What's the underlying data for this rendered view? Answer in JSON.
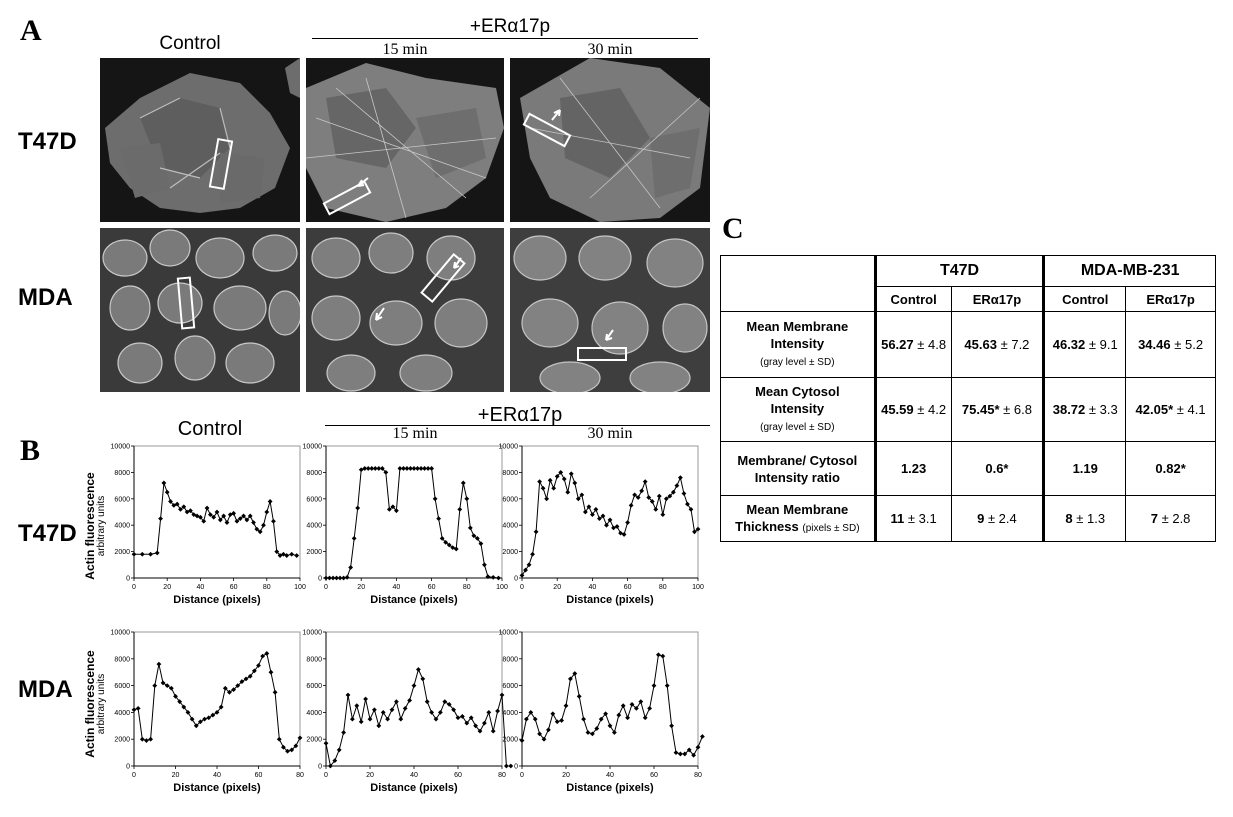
{
  "figure": {
    "panel_a": {
      "letter": "A",
      "col_control": "Control",
      "col_group": "+ERα17p",
      "col_15": "15 min",
      "col_30": "30 min",
      "row_t47d": "T47D",
      "row_mda": "MDA"
    },
    "panel_b": {
      "letter": "B",
      "col_control": "Control",
      "col_group": "+ERα17p",
      "col_15": "15 min",
      "col_30": "30 min",
      "row_t47d": "T47D",
      "row_mda": "MDA",
      "ylabel": "Actin fluorescence",
      "ylabel2": "arbitrary units",
      "xlabel": "Distance (pixels)"
    },
    "panel_c": {
      "letter": "C",
      "group1": "T47D",
      "group2": "MDA-MB-231",
      "sub_control": "Control",
      "sub_treat": "ERα17p",
      "rows": [
        {
          "label": "Mean Membrane Intensity",
          "unit": "(gray level  ± SD)",
          "cells": [
            {
              "v": "56.27",
              "e": "± 4.8"
            },
            {
              "v": "45.63",
              "e": "± 7.2"
            },
            {
              "v": "46.32",
              "e": "± 9.1"
            },
            {
              "v": "34.46",
              "e": "± 5.2"
            }
          ]
        },
        {
          "label": "Mean Cytosol Intensity",
          "unit": "(gray level  ± SD)",
          "cells": [
            {
              "v": "45.59",
              "e": "± 4.2"
            },
            {
              "v": "75.45*",
              "e": "± 6.8"
            },
            {
              "v": "38.72",
              "e": "± 3.3"
            },
            {
              "v": "42.05*",
              "e": "± 4.1"
            }
          ]
        },
        {
          "label": "Membrane/ Cytosol Intensity ratio",
          "unit": "",
          "cells": [
            {
              "v": "1.23",
              "e": ""
            },
            {
              "v": "0.6*",
              "e": ""
            },
            {
              "v": "1.19",
              "e": ""
            },
            {
              "v": "0.82*",
              "e": ""
            }
          ]
        },
        {
          "label": "Mean Membrane Thickness",
          "unit": "(pixels ± SD)",
          "cells": [
            {
              "v": "11",
              "e": "± 3.1"
            },
            {
              "v": "9",
              "e": "± 2.4"
            },
            {
              "v": "8",
              "e": "± 1.3"
            },
            {
              "v": "7",
              "e": "± 2.8"
            }
          ]
        }
      ]
    }
  },
  "chart_data": [
    {
      "type": "line",
      "name": "T47D Control",
      "ylim": [
        0,
        10000
      ],
      "xlim": [
        0,
        100
      ],
      "x_ticks": [
        0,
        20,
        40,
        60,
        80,
        100
      ],
      "y_ticks": [
        0,
        2000,
        4000,
        6000,
        8000,
        10000
      ],
      "x": [
        0,
        5,
        10,
        14,
        16,
        18,
        20,
        22,
        24,
        26,
        28,
        30,
        32,
        34,
        36,
        38,
        40,
        42,
        44,
        46,
        48,
        50,
        52,
        54,
        56,
        58,
        60,
        62,
        64,
        66,
        68,
        70,
        72,
        74,
        76,
        78,
        80,
        82,
        84,
        86,
        88,
        90,
        92,
        95,
        98
      ],
      "y": [
        1800,
        1800,
        1800,
        1900,
        4500,
        7200,
        6500,
        5800,
        5500,
        5600,
        5200,
        5400,
        5000,
        5100,
        4800,
        4700,
        4600,
        4300,
        5300,
        4800,
        4600,
        5000,
        4400,
        4700,
        4200,
        4800,
        4900,
        4300,
        4500,
        4700,
        4400,
        4700,
        4200,
        3700,
        3500,
        4000,
        5000,
        5800,
        4300,
        2000,
        1700,
        1800,
        1700,
        1800,
        1700
      ]
    },
    {
      "type": "line",
      "name": "T47D 15 min",
      "ylim": [
        0,
        10000
      ],
      "xlim": [
        0,
        100
      ],
      "x_ticks": [
        0,
        20,
        40,
        60,
        80,
        100
      ],
      "y_ticks": [
        0,
        2000,
        4000,
        6000,
        8000,
        10000
      ],
      "x": [
        0,
        2,
        4,
        6,
        8,
        10,
        12,
        14,
        16,
        18,
        20,
        22,
        24,
        26,
        28,
        30,
        32,
        34,
        36,
        38,
        40,
        42,
        44,
        46,
        48,
        50,
        52,
        54,
        56,
        58,
        60,
        62,
        64,
        66,
        68,
        70,
        72,
        74,
        76,
        78,
        80,
        82,
        84,
        86,
        88,
        90,
        92,
        95,
        98
      ],
      "y": [
        0,
        0,
        0,
        0,
        0,
        0,
        50,
        800,
        3000,
        5300,
        8200,
        8300,
        8300,
        8300,
        8300,
        8300,
        8300,
        8000,
        5200,
        5400,
        5100,
        8300,
        8300,
        8300,
        8300,
        8300,
        8300,
        8300,
        8300,
        8300,
        8300,
        6000,
        4500,
        3000,
        2700,
        2500,
        2300,
        2200,
        5200,
        7200,
        6000,
        3800,
        3200,
        3000,
        2600,
        1000,
        100,
        50,
        0
      ]
    },
    {
      "type": "line",
      "name": "T47D 30 min",
      "ylim": [
        0,
        10000
      ],
      "xlim": [
        0,
        100
      ],
      "x_ticks": [
        0,
        20,
        40,
        60,
        80,
        100
      ],
      "y_ticks": [
        0,
        2000,
        4000,
        6000,
        8000,
        10000
      ],
      "x": [
        0,
        2,
        4,
        6,
        8,
        10,
        12,
        14,
        16,
        18,
        20,
        22,
        24,
        26,
        28,
        30,
        32,
        34,
        36,
        38,
        40,
        42,
        44,
        46,
        48,
        50,
        52,
        54,
        56,
        58,
        60,
        62,
        64,
        66,
        68,
        70,
        72,
        74,
        76,
        78,
        80,
        82,
        84,
        86,
        88,
        90,
        92,
        94,
        96,
        98,
        100
      ],
      "y": [
        200,
        600,
        1000,
        1800,
        3500,
        7300,
        6800,
        6000,
        7400,
        6800,
        7700,
        8000,
        7500,
        6500,
        7900,
        7200,
        6000,
        6300,
        5000,
        5400,
        4800,
        5200,
        4500,
        4700,
        4000,
        4400,
        3800,
        3900,
        3400,
        3300,
        4200,
        5500,
        6300,
        6100,
        6600,
        7300,
        6100,
        5800,
        5200,
        6200,
        4800,
        6000,
        6200,
        6500,
        7000,
        7600,
        6400,
        5600,
        5200,
        3500,
        3700
      ]
    },
    {
      "type": "line",
      "name": "MDA Control",
      "ylim": [
        0,
        10000
      ],
      "xlim": [
        0,
        80
      ],
      "x_ticks": [
        0,
        20,
        40,
        60,
        80
      ],
      "y_ticks": [
        0,
        2000,
        4000,
        6000,
        8000,
        10000
      ],
      "x": [
        0,
        2,
        4,
        6,
        8,
        10,
        12,
        14,
        16,
        18,
        20,
        22,
        24,
        26,
        28,
        30,
        32,
        34,
        36,
        38,
        40,
        42,
        44,
        46,
        48,
        50,
        52,
        54,
        56,
        58,
        60,
        62,
        64,
        66,
        68,
        70,
        72,
        74,
        76,
        78,
        80
      ],
      "y": [
        4200,
        4300,
        2000,
        1900,
        2000,
        6000,
        7600,
        6200,
        6000,
        5800,
        5200,
        4800,
        4400,
        4000,
        3500,
        3000,
        3300,
        3500,
        3600,
        3800,
        4000,
        4400,
        5800,
        5500,
        5700,
        6000,
        6300,
        6500,
        6700,
        7100,
        7500,
        8200,
        8400,
        7000,
        5500,
        2000,
        1400,
        1100,
        1200,
        1500,
        2100
      ]
    },
    {
      "type": "line",
      "name": "MDA 15 min",
      "ylim": [
        0,
        10000
      ],
      "xlim": [
        0,
        80
      ],
      "x_ticks": [
        0,
        20,
        40,
        60,
        80
      ],
      "y_ticks": [
        0,
        2000,
        4000,
        6000,
        8000,
        10000
      ],
      "x": [
        0,
        2,
        4,
        6,
        8,
        10,
        12,
        14,
        16,
        18,
        20,
        22,
        24,
        26,
        28,
        30,
        32,
        34,
        36,
        38,
        40,
        42,
        44,
        46,
        48,
        50,
        52,
        54,
        56,
        58,
        60,
        62,
        64,
        66,
        68,
        70,
        72,
        74,
        76,
        78,
        80,
        82,
        84
      ],
      "y": [
        1700,
        0,
        400,
        1200,
        2500,
        5300,
        3500,
        4500,
        3300,
        5000,
        3500,
        4200,
        3000,
        4000,
        3500,
        4200,
        4800,
        3500,
        4300,
        4900,
        6000,
        7200,
        6500,
        4800,
        4000,
        3500,
        4000,
        4800,
        4600,
        4200,
        3600,
        3700,
        3200,
        3600,
        3000,
        2600,
        3200,
        4000,
        2600,
        4100,
        5300,
        0,
        0
      ]
    },
    {
      "type": "line",
      "name": "MDA 30 min",
      "ylim": [
        0,
        10000
      ],
      "xlim": [
        0,
        80
      ],
      "x_ticks": [
        0,
        20,
        40,
        60,
        80
      ],
      "y_ticks": [
        0,
        2000,
        4000,
        6000,
        8000,
        10000
      ],
      "x": [
        0,
        2,
        4,
        6,
        8,
        10,
        12,
        14,
        16,
        18,
        20,
        22,
        24,
        26,
        28,
        30,
        32,
        34,
        36,
        38,
        40,
        42,
        44,
        46,
        48,
        50,
        52,
        54,
        56,
        58,
        60,
        62,
        64,
        66,
        68,
        70,
        72,
        74,
        76,
        78,
        80,
        82
      ],
      "y": [
        1900,
        3500,
        4000,
        3500,
        2400,
        2000,
        2700,
        3900,
        3300,
        3400,
        4500,
        6500,
        6900,
        5200,
        3500,
        2500,
        2400,
        2800,
        3500,
        3900,
        3000,
        2500,
        3800,
        4500,
        3600,
        4600,
        4300,
        4800,
        3600,
        4300,
        6000,
        8300,
        8200,
        6000,
        3000,
        1000,
        900,
        900,
        1200,
        800,
        1400,
        2200
      ]
    }
  ]
}
